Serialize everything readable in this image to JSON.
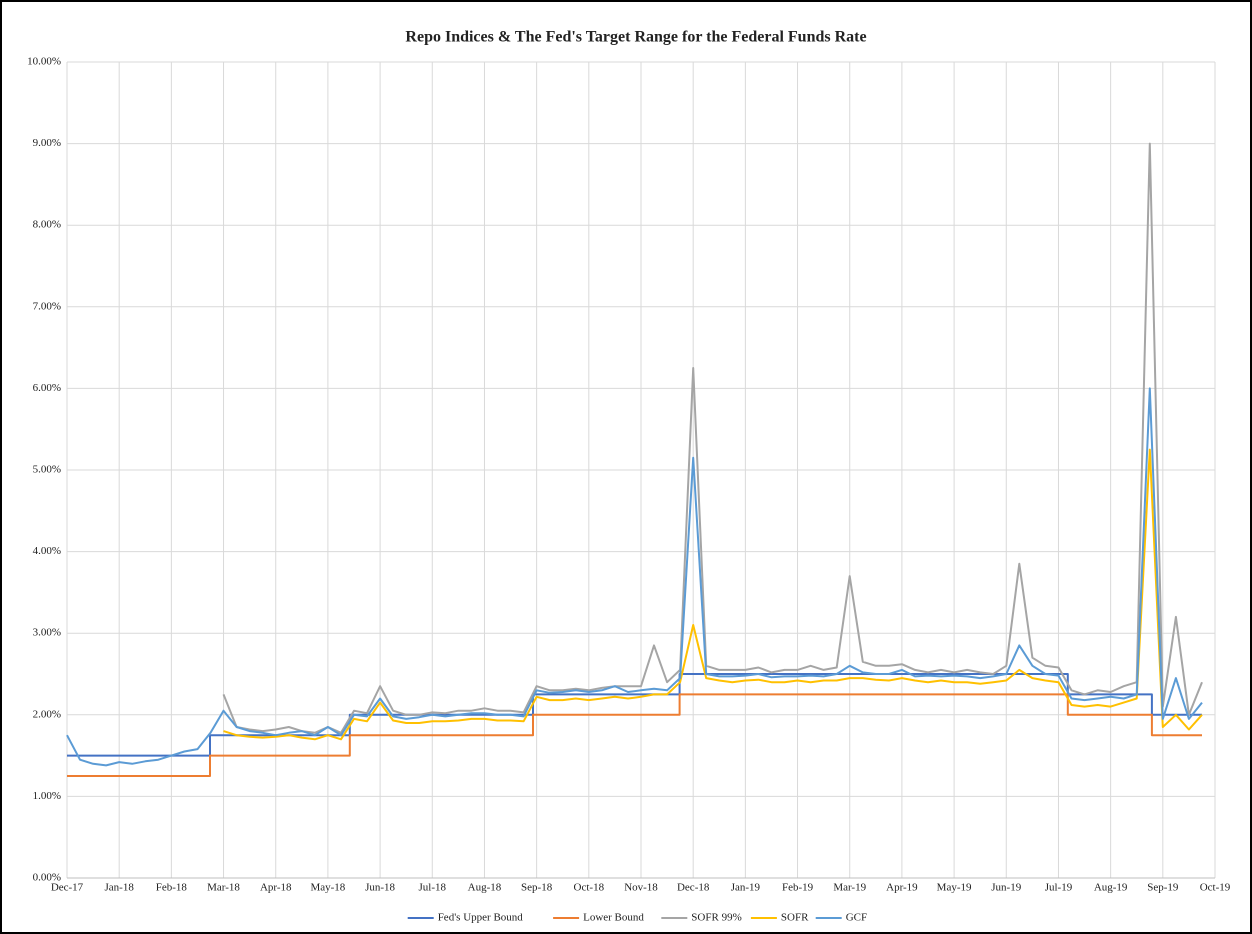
{
  "chart_data": {
    "type": "line",
    "title": "Repo Indices & The Fed's Target Range for the Federal Funds Rate",
    "xlim": [
      0,
      22
    ],
    "xticks": [
      {
        "value": 0,
        "label": "Dec-17"
      },
      {
        "value": 1,
        "label": "Jan-18"
      },
      {
        "value": 2,
        "label": "Feb-18"
      },
      {
        "value": 3,
        "label": "Mar-18"
      },
      {
        "value": 4,
        "label": "Apr-18"
      },
      {
        "value": 5,
        "label": "May-18"
      },
      {
        "value": 6,
        "label": "Jun-18"
      },
      {
        "value": 7,
        "label": "Jul-18"
      },
      {
        "value": 8,
        "label": "Aug-18"
      },
      {
        "value": 9,
        "label": "Sep-18"
      },
      {
        "value": 10,
        "label": "Oct-18"
      },
      {
        "value": 11,
        "label": "Nov-18"
      },
      {
        "value": 12,
        "label": "Dec-18"
      },
      {
        "value": 13,
        "label": "Jan-19"
      },
      {
        "value": 14,
        "label": "Feb-19"
      },
      {
        "value": 15,
        "label": "Mar-19"
      },
      {
        "value": 16,
        "label": "Apr-19"
      },
      {
        "value": 17,
        "label": "May-19"
      },
      {
        "value": 18,
        "label": "Jun-19"
      },
      {
        "value": 19,
        "label": "Jul-19"
      },
      {
        "value": 20,
        "label": "Aug-19"
      },
      {
        "value": 21,
        "label": "Sep-19"
      },
      {
        "value": 22,
        "label": "Oct-19"
      }
    ],
    "ylim": [
      0,
      10
    ],
    "yticks": [
      {
        "value": 0,
        "label": "0.00%"
      },
      {
        "value": 1,
        "label": "1.00%"
      },
      {
        "value": 2,
        "label": "2.00%"
      },
      {
        "value": 3,
        "label": "3.00%"
      },
      {
        "value": 4,
        "label": "4.00%"
      },
      {
        "value": 5,
        "label": "5.00%"
      },
      {
        "value": 6,
        "label": "6.00%"
      },
      {
        "value": 7,
        "label": "7.00%"
      },
      {
        "value": 8,
        "label": "8.00%"
      },
      {
        "value": 9,
        "label": "9.00%"
      },
      {
        "value": 10,
        "label": "10.00%"
      }
    ],
    "grid": true,
    "legend": "bottom",
    "series": [
      {
        "name": "Fed's Upper Bound",
        "color": "#4472c4",
        "x": [
          0,
          2.74,
          2.74,
          5.42,
          5.42,
          8.93,
          8.93,
          11.74,
          11.74,
          19.18,
          19.18,
          20.79,
          20.79,
          21.75
        ],
        "values": [
          1.5,
          1.5,
          1.75,
          1.75,
          2,
          2,
          2.25,
          2.25,
          2.5,
          2.5,
          2.25,
          2.25,
          2,
          2
        ]
      },
      {
        "name": "Lower Bound",
        "color": "#ed7d31",
        "x": [
          0,
          2.74,
          2.74,
          5.42,
          5.42,
          8.93,
          8.93,
          11.74,
          11.74,
          19.18,
          19.18,
          20.79,
          20.79,
          21.75
        ],
        "values": [
          1.25,
          1.25,
          1.5,
          1.5,
          1.75,
          1.75,
          2,
          2,
          2.25,
          2.25,
          2,
          2,
          1.75,
          1.75
        ]
      },
      {
        "name": "SOFR 99%",
        "color": "#a5a5a5",
        "x": [
          0,
          0.25,
          0.5,
          0.75,
          1,
          1.25,
          1.5,
          1.75,
          2,
          2.25,
          2.5,
          2.75,
          3,
          3.25,
          3.5,
          3.75,
          4,
          4.25,
          4.5,
          4.75,
          5,
          5.25,
          5.5,
          5.75,
          6,
          6.25,
          6.5,
          6.75,
          7,
          7.25,
          7.5,
          7.75,
          8,
          8.25,
          8.5,
          8.75,
          9,
          9.25,
          9.5,
          9.75,
          10,
          10.25,
          10.5,
          10.75,
          11,
          11.25,
          11.5,
          11.75,
          12,
          12.25,
          12.5,
          12.75,
          13,
          13.25,
          13.5,
          13.75,
          14,
          14.25,
          14.5,
          14.75,
          15,
          15.25,
          15.5,
          15.75,
          16,
          16.25,
          16.5,
          16.75,
          17,
          17.25,
          17.5,
          17.75,
          18,
          18.25,
          18.5,
          18.75,
          19,
          19.25,
          19.5,
          19.75,
          20,
          20.25,
          20.5,
          20.75,
          21,
          21.25,
          21.5,
          21.75
        ],
        "values": [
          null,
          null,
          null,
          null,
          null,
          null,
          null,
          null,
          null,
          null,
          null,
          null,
          2.25,
          1.85,
          1.82,
          1.8,
          1.82,
          1.85,
          1.8,
          1.78,
          1.85,
          1.78,
          2.05,
          2.02,
          2.35,
          2.05,
          2.0,
          2.0,
          2.03,
          2.02,
          2.05,
          2.05,
          2.08,
          2.05,
          2.05,
          2.03,
          2.35,
          2.3,
          2.3,
          2.32,
          2.3,
          2.33,
          2.35,
          2.35,
          2.35,
          2.85,
          2.4,
          2.55,
          6.25,
          2.6,
          2.55,
          2.55,
          2.55,
          2.58,
          2.52,
          2.55,
          2.55,
          2.6,
          2.55,
          2.58,
          3.7,
          2.65,
          2.6,
          2.6,
          2.62,
          2.55,
          2.52,
          2.55,
          2.52,
          2.55,
          2.52,
          2.5,
          2.6,
          3.85,
          2.7,
          2.6,
          2.58,
          2.3,
          2.25,
          2.3,
          2.28,
          2.35,
          2.4,
          9.0,
          2.1,
          3.2,
          2.0,
          2.4
        ]
      },
      {
        "name": "SOFR",
        "color": "#ffc000",
        "x": [
          0,
          0.25,
          0.5,
          0.75,
          1,
          1.25,
          1.5,
          1.75,
          2,
          2.25,
          2.5,
          2.75,
          3,
          3.25,
          3.5,
          3.75,
          4,
          4.25,
          4.5,
          4.75,
          5,
          5.25,
          5.5,
          5.75,
          6,
          6.25,
          6.5,
          6.75,
          7,
          7.25,
          7.5,
          7.75,
          8,
          8.25,
          8.5,
          8.75,
          9,
          9.25,
          9.5,
          9.75,
          10,
          10.25,
          10.5,
          10.75,
          11,
          11.25,
          11.5,
          11.75,
          12,
          12.25,
          12.5,
          12.75,
          13,
          13.25,
          13.5,
          13.75,
          14,
          14.25,
          14.5,
          14.75,
          15,
          15.25,
          15.5,
          15.75,
          16,
          16.25,
          16.5,
          16.75,
          17,
          17.25,
          17.5,
          17.75,
          18,
          18.25,
          18.5,
          18.75,
          19,
          19.25,
          19.5,
          19.75,
          20,
          20.25,
          20.5,
          20.75,
          21,
          21.25,
          21.5,
          21.75
        ],
        "values": [
          null,
          null,
          null,
          null,
          null,
          null,
          null,
          null,
          null,
          null,
          null,
          null,
          1.8,
          1.75,
          1.73,
          1.72,
          1.73,
          1.75,
          1.72,
          1.7,
          1.75,
          1.7,
          1.95,
          1.92,
          2.15,
          1.93,
          1.9,
          1.9,
          1.92,
          1.92,
          1.93,
          1.95,
          1.95,
          1.93,
          1.93,
          1.92,
          2.22,
          2.18,
          2.18,
          2.2,
          2.18,
          2.2,
          2.22,
          2.2,
          2.22,
          2.25,
          2.25,
          2.4,
          3.1,
          2.45,
          2.42,
          2.4,
          2.42,
          2.43,
          2.4,
          2.4,
          2.42,
          2.4,
          2.42,
          2.42,
          2.45,
          2.45,
          2.43,
          2.42,
          2.45,
          2.42,
          2.4,
          2.42,
          2.4,
          2.4,
          2.38,
          2.4,
          2.42,
          2.55,
          2.45,
          2.42,
          2.4,
          2.12,
          2.1,
          2.12,
          2.1,
          2.15,
          2.2,
          5.25,
          1.85,
          2.0,
          1.82,
          2.0
        ]
      },
      {
        "name": "GCF",
        "color": "#5b9bd5",
        "x": [
          0,
          0.25,
          0.5,
          0.75,
          1,
          1.25,
          1.5,
          1.75,
          2,
          2.25,
          2.5,
          2.75,
          3,
          3.25,
          3.5,
          3.75,
          4,
          4.25,
          4.5,
          4.75,
          5,
          5.25,
          5.5,
          5.75,
          6,
          6.25,
          6.5,
          6.75,
          7,
          7.25,
          7.5,
          7.75,
          8,
          8.25,
          8.5,
          8.75,
          9,
          9.25,
          9.5,
          9.75,
          10,
          10.25,
          10.5,
          10.75,
          11,
          11.25,
          11.5,
          11.75,
          12,
          12.25,
          12.5,
          12.75,
          13,
          13.25,
          13.5,
          13.75,
          14,
          14.25,
          14.5,
          14.75,
          15,
          15.25,
          15.5,
          15.75,
          16,
          16.25,
          16.5,
          16.75,
          17,
          17.25,
          17.5,
          17.75,
          18,
          18.25,
          18.5,
          18.75,
          19,
          19.25,
          19.5,
          19.75,
          20,
          20.25,
          20.5,
          20.75,
          21,
          21.25,
          21.5,
          21.75
        ],
        "values": [
          1.75,
          1.45,
          1.4,
          1.38,
          1.42,
          1.4,
          1.43,
          1.45,
          1.5,
          1.55,
          1.58,
          1.78,
          2.05,
          1.85,
          1.8,
          1.78,
          1.75,
          1.78,
          1.8,
          1.75,
          1.85,
          1.75,
          2.0,
          1.98,
          2.2,
          1.98,
          1.95,
          1.97,
          2.0,
          1.98,
          2.0,
          2.02,
          2.02,
          2.0,
          2.0,
          1.98,
          2.3,
          2.27,
          2.28,
          2.3,
          2.28,
          2.3,
          2.35,
          2.28,
          2.3,
          2.32,
          2.3,
          2.45,
          5.15,
          2.5,
          2.47,
          2.47,
          2.48,
          2.5,
          2.46,
          2.47,
          2.47,
          2.48,
          2.47,
          2.5,
          2.6,
          2.52,
          2.5,
          2.5,
          2.55,
          2.47,
          2.48,
          2.47,
          2.48,
          2.47,
          2.45,
          2.47,
          2.5,
          2.85,
          2.6,
          2.5,
          2.48,
          2.2,
          2.18,
          2.2,
          2.22,
          2.2,
          2.25,
          6.0,
          1.95,
          2.45,
          1.95,
          2.15
        ]
      }
    ]
  }
}
